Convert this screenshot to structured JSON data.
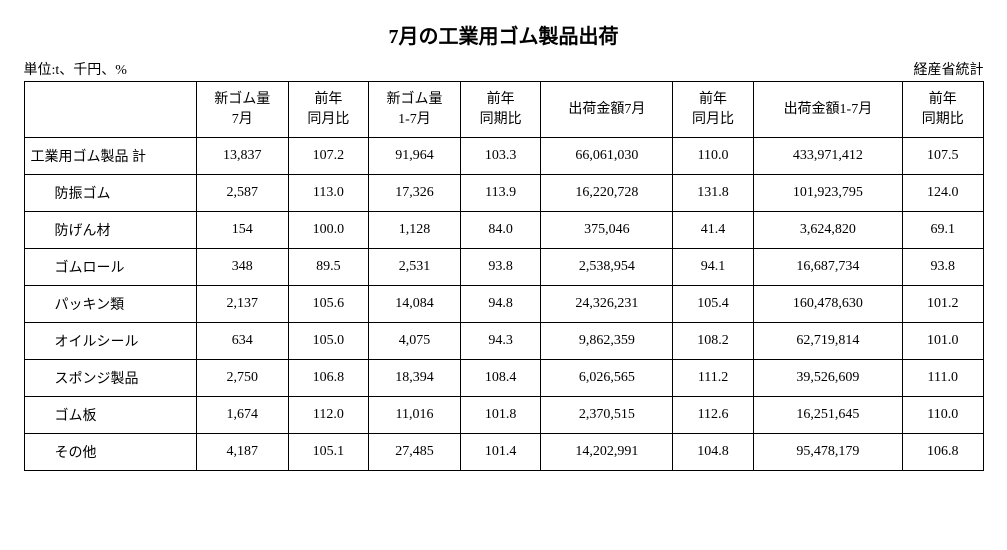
{
  "title": "7月の工業用ゴム製品出荷",
  "unit_label": "単位:t、千円、%",
  "source_label": "経産省統計",
  "columns": [
    "",
    "新ゴム量\n7月",
    "前年\n同月比",
    "新ゴム量\n1-7月",
    "前年\n同期比",
    "出荷金額7月",
    "前年\n同月比",
    "出荷金額1-7月",
    "前年\n同期比"
  ],
  "rows": [
    {
      "label": "工業用ゴム製品 計",
      "indent": false,
      "cells": [
        "13,837",
        "107.2",
        "91,964",
        "103.3",
        "66,061,030",
        "110.0",
        "433,971,412",
        "107.5"
      ]
    },
    {
      "label": "防振ゴム",
      "indent": true,
      "cells": [
        "2,587",
        "113.0",
        "17,326",
        "113.9",
        "16,220,728",
        "131.8",
        "101,923,795",
        "124.0"
      ]
    },
    {
      "label": "防げん材",
      "indent": true,
      "cells": [
        "154",
        "100.0",
        "1,128",
        "84.0",
        "375,046",
        "41.4",
        "3,624,820",
        "69.1"
      ]
    },
    {
      "label": "ゴムロール",
      "indent": true,
      "cells": [
        "348",
        "89.5",
        "2,531",
        "93.8",
        "2,538,954",
        "94.1",
        "16,687,734",
        "93.8"
      ]
    },
    {
      "label": "パッキン類",
      "indent": true,
      "cells": [
        "2,137",
        "105.6",
        "14,084",
        "94.8",
        "24,326,231",
        "105.4",
        "160,478,630",
        "101.2"
      ]
    },
    {
      "label": "オイルシール",
      "indent": true,
      "cells": [
        "634",
        "105.0",
        "4,075",
        "94.3",
        "9,862,359",
        "108.2",
        "62,719,814",
        "101.0"
      ]
    },
    {
      "label": "スポンジ製品",
      "indent": true,
      "cells": [
        "2,750",
        "106.8",
        "18,394",
        "108.4",
        "6,026,565",
        "111.2",
        "39,526,609",
        "111.0"
      ]
    },
    {
      "label": "ゴム板",
      "indent": true,
      "cells": [
        "1,674",
        "112.0",
        "11,016",
        "101.8",
        "2,370,515",
        "112.6",
        "16,251,645",
        "110.0"
      ]
    },
    {
      "label": "その他",
      "indent": true,
      "cells": [
        "4,187",
        "105.1",
        "27,485",
        "101.4",
        "14,202,991",
        "104.8",
        "95,478,179",
        "106.8"
      ]
    }
  ]
}
